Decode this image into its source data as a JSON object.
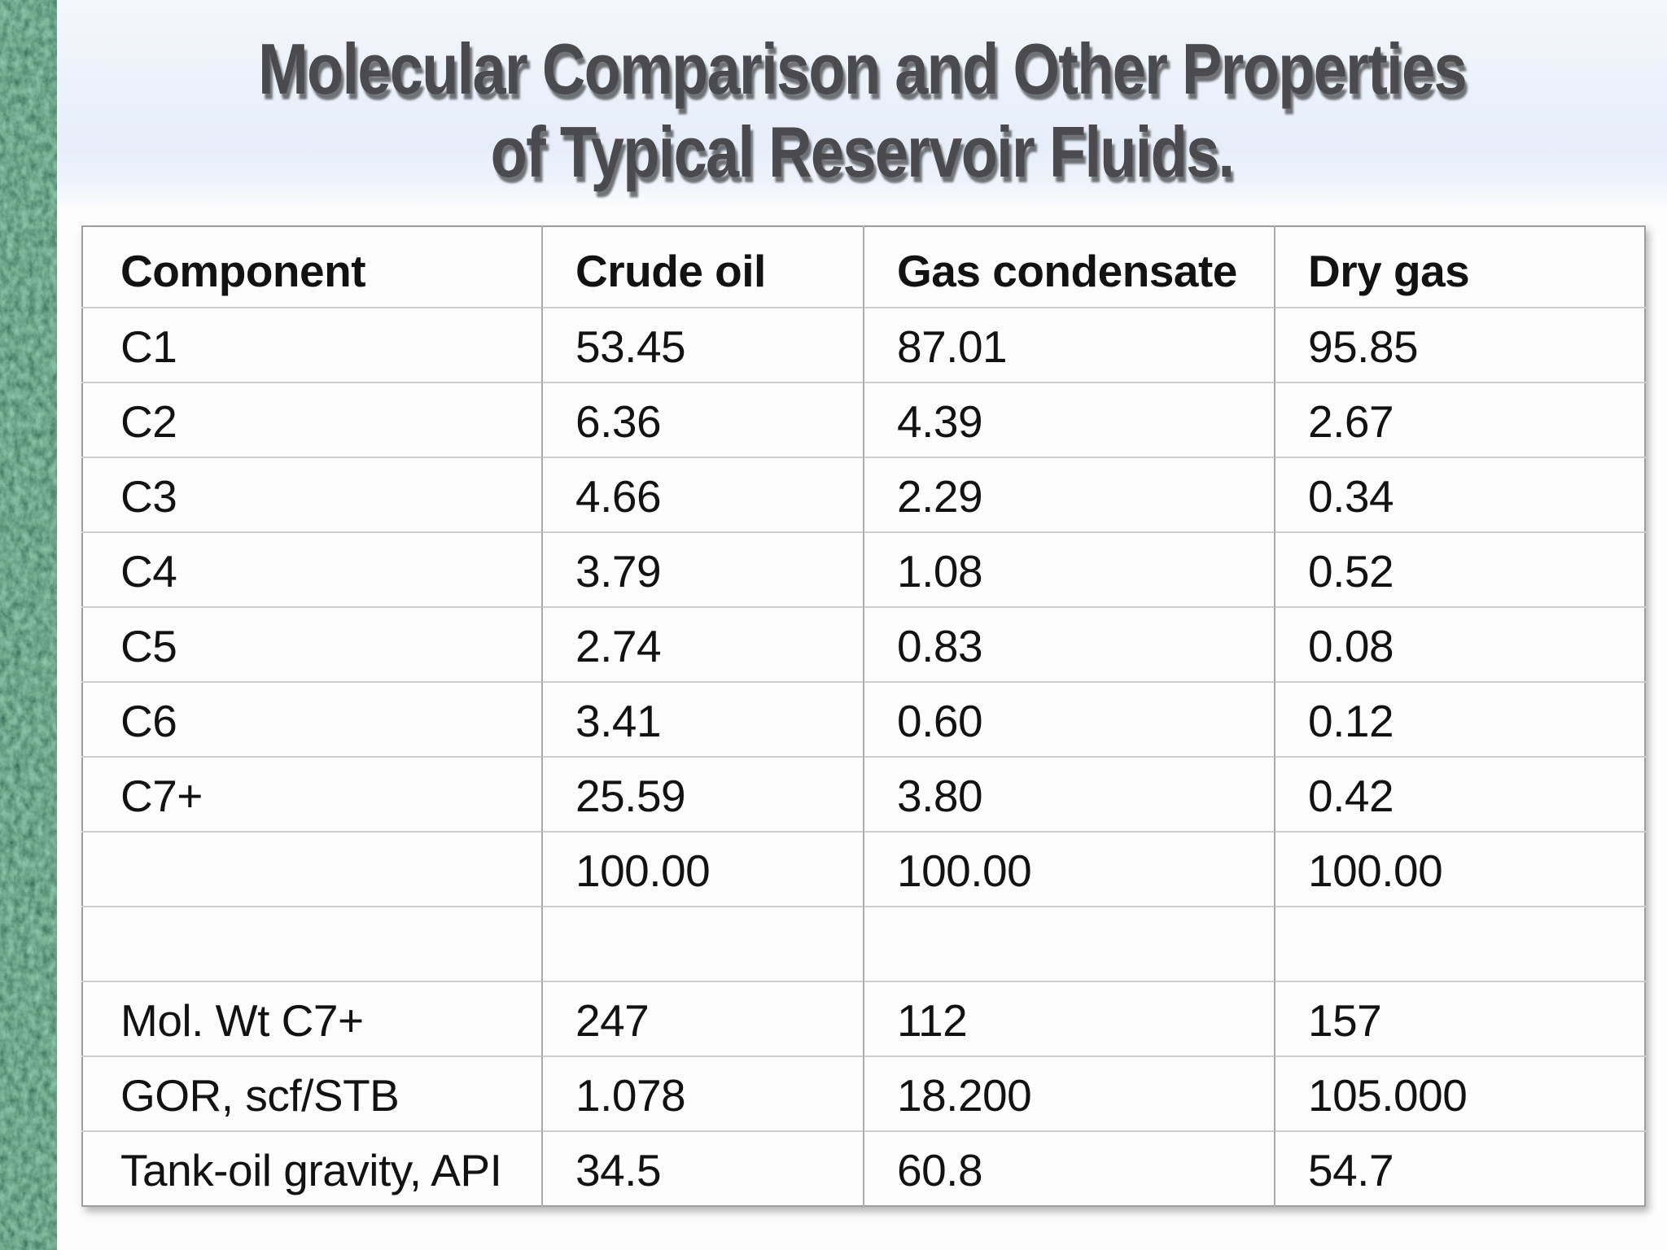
{
  "title": {
    "line1": "Molecular Comparison and Other Properties",
    "line2": "of Typical Reservoir Fluids."
  },
  "table": {
    "headers": [
      "Component",
      "Crude oil",
      "Gas condensate",
      "Dry gas"
    ],
    "rows": [
      [
        "C1",
        "53.45",
        "87.01",
        "95.85"
      ],
      [
        "C2",
        "6.36",
        "4.39",
        "2.67"
      ],
      [
        "C3",
        "4.66",
        "2.29",
        "0.34"
      ],
      [
        "C4",
        "3.79",
        "1.08",
        "0.52"
      ],
      [
        "C5",
        "2.74",
        "0.83",
        "0.08"
      ],
      [
        "C6",
        "3.41",
        "0.60",
        "0.12"
      ],
      [
        "C7+",
        "25.59",
        "3.80",
        "0.42"
      ],
      [
        "",
        "100.00",
        "100.00",
        "100.00"
      ],
      [
        "",
        "",
        "",
        ""
      ],
      [
        "Mol. Wt C7+",
        "247",
        "112",
        "157"
      ],
      [
        "GOR, scf/STB",
        "1.078",
        "18.200",
        "105.000"
      ],
      [
        "Tank-oil gravity, API",
        "34.5",
        "60.8",
        "54.7"
      ]
    ]
  },
  "colors": {
    "strip_green": "#1c5736",
    "title_band_blue": "#e8eef9",
    "title_text": "#4b4b4f",
    "table_border_vertical": "#acacac",
    "table_border_horizontal": "#cfcfcf"
  }
}
